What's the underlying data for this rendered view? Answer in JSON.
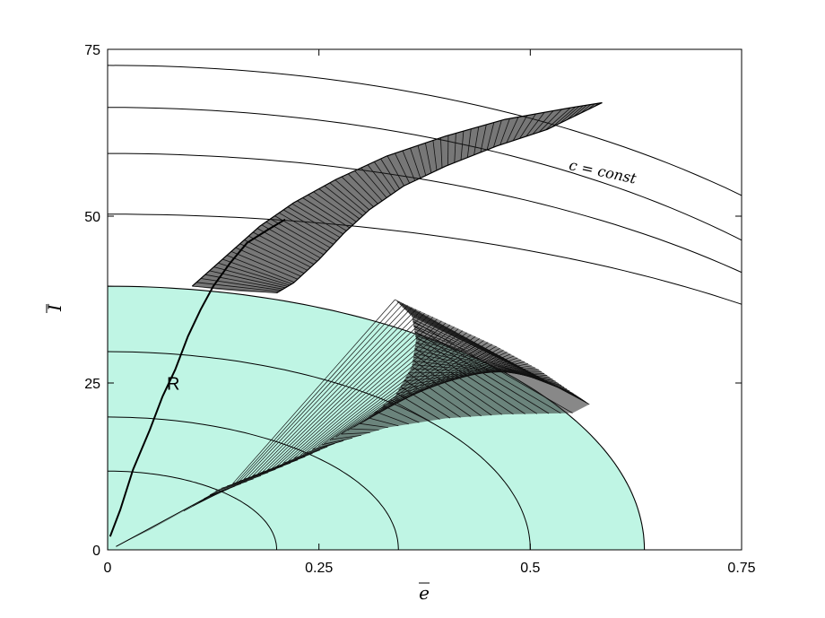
{
  "chart_data": {
    "type": "line",
    "xlabel": "e",
    "ylabel": "I",
    "xlim": [
      0,
      0.75
    ],
    "ylim": [
      0,
      75
    ],
    "x_ticks": [
      "0",
      "0.25",
      "0.5",
      "0.75"
    ],
    "y_ticks": [
      "0",
      "25",
      "50",
      "75"
    ],
    "region_color": "#bff5e4",
    "region": {
      "name": "shaded region",
      "boundary_e0": 0.635,
      "boundary_I0": 39.5
    },
    "contours_inside": [
      {
        "e0": 0.2,
        "I0": 11.8
      },
      {
        "e0": 0.344,
        "I0": 19.9
      },
      {
        "e0": 0.5,
        "I0": 29.7
      }
    ],
    "contours_outside": [
      {
        "e0": 1.1,
        "I0": 50.3
      },
      {
        "e0": 1.05,
        "I0": 59.4
      },
      {
        "e0": 1.05,
        "I0": 66.3
      },
      {
        "e0": 1.1,
        "I0": 72.6
      }
    ],
    "curve_R": {
      "label": "R",
      "points": [
        [
          0.003,
          2
        ],
        [
          0.015,
          6
        ],
        [
          0.03,
          12
        ],
        [
          0.05,
          18
        ],
        [
          0.065,
          23
        ],
        [
          0.08,
          27
        ],
        [
          0.095,
          32
        ],
        [
          0.11,
          36
        ],
        [
          0.125,
          39.5
        ],
        [
          0.145,
          43
        ],
        [
          0.165,
          46
        ],
        [
          0.19,
          48
        ],
        [
          0.21,
          49.5
        ]
      ]
    },
    "band_lower": {
      "upper_edge": [
        [
          0.01,
          0.5
        ],
        [
          0.05,
          3
        ],
        [
          0.1,
          6.5
        ],
        [
          0.13,
          9
        ],
        [
          0.16,
          10.5
        ],
        [
          0.2,
          12.5
        ],
        [
          0.25,
          15.5
        ],
        [
          0.3,
          19
        ],
        [
          0.34,
          23
        ],
        [
          0.36,
          27.5
        ],
        [
          0.365,
          31.5
        ],
        [
          0.36,
          35
        ],
        [
          0.34,
          37.5
        ]
      ],
      "lower_edge": [
        [
          0.13,
          8.5
        ],
        [
          0.17,
          10.5
        ],
        [
          0.22,
          13.2
        ],
        [
          0.27,
          16
        ],
        [
          0.33,
          18.3
        ],
        [
          0.4,
          19.7
        ],
        [
          0.47,
          20.3
        ],
        [
          0.55,
          20.5
        ]
      ],
      "fringe_end": [
        [
          0.34,
          37.5
        ],
        [
          0.4,
          34
        ],
        [
          0.46,
          30.5
        ],
        [
          0.51,
          27
        ],
        [
          0.55,
          23.5
        ],
        [
          0.57,
          21.8
        ]
      ]
    },
    "band_upper": {
      "upper_edge": [
        [
          0.1,
          39.5
        ],
        [
          0.14,
          44
        ],
        [
          0.18,
          48.5
        ],
        [
          0.22,
          52
        ],
        [
          0.27,
          55.5
        ],
        [
          0.33,
          59
        ],
        [
          0.4,
          62
        ],
        [
          0.47,
          64.5
        ],
        [
          0.55,
          66.3
        ],
        [
          0.585,
          67
        ]
      ],
      "lower_edge": [
        [
          0.2,
          38.5
        ],
        [
          0.22,
          40
        ],
        [
          0.25,
          43.5
        ],
        [
          0.28,
          47.5
        ],
        [
          0.31,
          51
        ],
        [
          0.35,
          54.5
        ],
        [
          0.4,
          57.5
        ],
        [
          0.46,
          60.5
        ],
        [
          0.52,
          63
        ],
        [
          0.585,
          67
        ]
      ],
      "fringe_bottom": [
        [
          0.1,
          39.5
        ],
        [
          0.13,
          39
        ],
        [
          0.16,
          38.7
        ],
        [
          0.2,
          38.5
        ]
      ]
    },
    "annotations": [
      {
        "text": "R",
        "x": 0.07,
        "y": 24
      },
      {
        "text": "c = const",
        "x": 0.545,
        "y": 57,
        "rotation_deg": 12
      }
    ]
  }
}
